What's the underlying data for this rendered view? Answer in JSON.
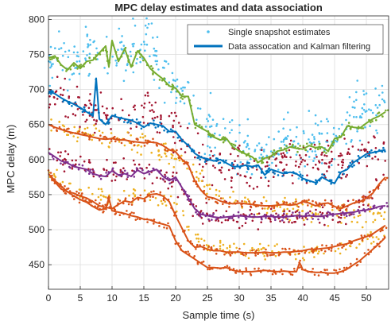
{
  "chart_data": {
    "type": "scatter",
    "title": "MPC delay estimates and data association",
    "xlabel": "Sample time (s)",
    "ylabel": "MPC delay (m)",
    "xlim": [
      0,
      53.5
    ],
    "ylim": [
      415,
      805
    ],
    "xticks": [
      0,
      5,
      10,
      15,
      20,
      25,
      30,
      35,
      40,
      45,
      50
    ],
    "yticks": [
      450,
      500,
      550,
      600,
      650,
      700,
      750,
      800
    ],
    "grid": true,
    "legend": {
      "placement": "top-right",
      "entries": [
        {
          "label": "Single snapshot estimates",
          "marker": "dot",
          "color": "#4dbeee"
        },
        {
          "label": "Data assocation and Kalman filtering",
          "marker": "line",
          "color": "#0072bd"
        }
      ]
    },
    "colors": {
      "snapshot_cyan": "#4dbeee",
      "snapshot_red": "#a2142f",
      "snapshot_yellow": "#edb120",
      "snapshot_orange": "#d95319",
      "snapshot_purple": "#7e2f8e",
      "track_blue": "#0072bd",
      "track_green": "#77ac30",
      "track_orange": "#d95319",
      "track_purple": "#7e2f8e"
    },
    "scatter_series": [
      {
        "color": "#4dbeee",
        "x": [
          0,
          2,
          4,
          6,
          8,
          10,
          12,
          14,
          16,
          18,
          20,
          22,
          24,
          26,
          28,
          30,
          32,
          34,
          36,
          38,
          40,
          42,
          44,
          46,
          48,
          50,
          52,
          53
        ],
        "y": [
          748,
          752,
          738,
          760,
          745,
          740,
          765,
          750,
          770,
          720,
          715,
          680,
          650,
          640,
          630,
          620,
          615,
          605,
          612,
          625,
          620,
          630,
          625,
          640,
          660,
          670,
          665,
          670
        ],
        "spread": 55,
        "density": 14
      },
      {
        "color": "#a2142f",
        "x": [
          0,
          3,
          6,
          9,
          12,
          15,
          18,
          20,
          22,
          25,
          28,
          31,
          34,
          37,
          40,
          43,
          46,
          49,
          52,
          53
        ],
        "y": [
          690,
          685,
          670,
          665,
          660,
          665,
          660,
          640,
          620,
          595,
          590,
          588,
          592,
          595,
          600,
          595,
          600,
          610,
          615,
          620
        ],
        "spread": 38,
        "density": 12
      },
      {
        "color": "#edb120",
        "x": [
          0,
          4,
          8,
          12,
          16,
          20,
          22,
          25,
          30,
          35,
          40,
          45,
          50,
          53
        ],
        "y": [
          650,
          640,
          628,
          625,
          620,
          605,
          585,
          560,
          540,
          530,
          525,
          520,
          520,
          525
        ],
        "spread": 20,
        "density": 8
      },
      {
        "color": "#edb120",
        "x": [
          0,
          5,
          10,
          15,
          20,
          22,
          25,
          30,
          35,
          40,
          45,
          50,
          53
        ],
        "y": [
          582,
          555,
          545,
          548,
          540,
          500,
          480,
          470,
          468,
          468,
          472,
          485,
          495
        ],
        "spread": 14,
        "density": 6
      },
      {
        "color": "#a2142f",
        "x": [
          0,
          5,
          10,
          15,
          20,
          23,
          25,
          30,
          35,
          40,
          43,
          46,
          50,
          53
        ],
        "y": [
          610,
          590,
          580,
          585,
          570,
          530,
          520,
          520,
          520,
          520,
          525,
          520,
          545,
          570
        ],
        "spread": 22,
        "density": 8
      }
    ],
    "tracks": [
      {
        "color": "#77ac30",
        "x": [
          0,
          1,
          2,
          3,
          4,
          5,
          6,
          7,
          8,
          9,
          9.5,
          10,
          11,
          12,
          13,
          14,
          15,
          16,
          17,
          18,
          19,
          20,
          21,
          22,
          23,
          24,
          25,
          26,
          27,
          28,
          29,
          30,
          31,
          32,
          33,
          34,
          35,
          36,
          37,
          38,
          39,
          40,
          41,
          42,
          43,
          44,
          45,
          46,
          47,
          48,
          49,
          50,
          51,
          52,
          53
        ],
        "y": [
          745,
          748,
          735,
          728,
          738,
          730,
          740,
          742,
          752,
          762,
          732,
          770,
          740,
          758,
          732,
          755,
          745,
          730,
          722,
          715,
          705,
          702,
          690,
          690,
          650,
          645,
          640,
          632,
          628,
          630,
          618,
          612,
          608,
          604,
          596,
          602,
          605,
          612,
          614,
          618,
          616,
          615,
          620,
          617,
          618,
          612,
          630,
          632,
          648,
          646,
          645,
          652,
          658,
          662,
          668
        ]
      },
      {
        "color": "#0072bd",
        "x": [
          0,
          1,
          2,
          3,
          4,
          5,
          6,
          7,
          7.5,
          8,
          9,
          10,
          11,
          12,
          13,
          14,
          15,
          16,
          17,
          18,
          19,
          20,
          21,
          22,
          23,
          24,
          25,
          26,
          27,
          28,
          29,
          30,
          31,
          32,
          33,
          34,
          35,
          36,
          37,
          38,
          39,
          40,
          41,
          42,
          43,
          44,
          45,
          46,
          47,
          48,
          49,
          50,
          51,
          52,
          53
        ],
        "y": [
          698,
          694,
          688,
          683,
          679,
          674,
          668,
          662,
          716,
          658,
          650,
          663,
          660,
          658,
          656,
          652,
          646,
          652,
          650,
          648,
          640,
          640,
          628,
          620,
          609,
          603,
          601,
          598,
          600,
          595,
          590,
          590,
          592,
          590,
          592,
          578,
          586,
          583,
          580,
          582,
          580,
          573,
          570,
          567,
          575,
          570,
          566,
          582,
          586,
          596,
          602,
          608,
          610,
          612,
          614
        ]
      },
      {
        "color": "#d95319",
        "x": [
          0,
          1,
          2,
          3,
          4,
          5,
          6,
          7,
          8,
          9,
          10,
          11,
          12,
          13,
          14,
          15,
          16,
          17,
          18,
          19,
          20,
          21,
          22,
          23,
          24,
          25,
          26,
          27,
          28,
          29,
          30,
          31,
          32,
          33,
          34,
          35,
          36,
          37,
          38,
          39,
          40,
          41,
          42,
          43,
          44,
          45,
          46,
          47,
          48,
          49,
          50,
          51,
          52,
          53
        ],
        "y": [
          650,
          646,
          643,
          640,
          638,
          636,
          634,
          632,
          630,
          629,
          630,
          628,
          628,
          626,
          625,
          624,
          625,
          624,
          620,
          614,
          611,
          600,
          592,
          570,
          556,
          547,
          545,
          541,
          538,
          537,
          538,
          537,
          536,
          535,
          534,
          534,
          535,
          536,
          535,
          536,
          540,
          538,
          534,
          537,
          538,
          533,
          530,
          534,
          538,
          540,
          545,
          552,
          565,
          575
        ]
      },
      {
        "color": "#7e2f8e",
        "x": [
          0,
          1,
          2,
          3,
          4,
          5,
          6,
          7,
          8,
          9,
          10,
          11,
          12,
          13,
          14,
          15,
          16,
          17,
          18,
          19,
          20,
          21,
          22,
          23,
          24,
          25,
          26,
          27,
          28,
          29,
          30,
          31,
          32,
          33,
          34,
          35,
          36,
          37,
          38,
          39,
          40,
          41,
          42,
          43,
          44,
          45,
          46,
          47,
          48,
          49,
          50,
          51,
          52,
          53
        ],
        "y": [
          610,
          604,
          598,
          595,
          590,
          588,
          586,
          580,
          577,
          576,
          584,
          578,
          580,
          576,
          585,
          580,
          583,
          586,
          576,
          570,
          575,
          560,
          545,
          530,
          522,
          520,
          518,
          517,
          518,
          519,
          520,
          519,
          518,
          518,
          519,
          519,
          518,
          518,
          519,
          520,
          519,
          520,
          519,
          519,
          521,
          522,
          523,
          524,
          525,
          527,
          528,
          530,
          533,
          534
        ]
      },
      {
        "color": "#d95319",
        "x": [
          0,
          1,
          2,
          3,
          4,
          5,
          6,
          7,
          8,
          9,
          10,
          11,
          12,
          13,
          14,
          15,
          16,
          17,
          18,
          19,
          20,
          21,
          22,
          23,
          24,
          25,
          26,
          27,
          28,
          29,
          30,
          31,
          32,
          33,
          34,
          35,
          36,
          37,
          38,
          39,
          40,
          41,
          42,
          43,
          44,
          45,
          46,
          47,
          48,
          49,
          50,
          51,
          52,
          53
        ],
        "y": [
          580,
          568,
          558,
          554,
          552,
          548,
          545,
          540,
          534,
          532,
          530,
          536,
          541,
          539,
          546,
          544,
          550,
          551,
          548,
          540,
          520,
          502,
          484,
          475,
          476,
          472,
          470,
          470,
          468,
          468,
          468,
          467,
          467,
          467,
          468,
          467,
          467,
          468,
          468,
          469,
          470,
          472,
          472,
          473,
          474,
          476,
          478,
          480,
          484,
          487,
          490,
          494,
          500,
          506
        ]
      },
      {
        "color": "#d95319",
        "x": [
          0,
          1,
          2,
          3,
          4,
          5,
          6,
          7,
          8,
          9,
          9.5,
          10,
          11,
          12,
          13,
          14,
          15,
          16,
          17,
          18,
          19,
          20,
          21,
          22,
          23,
          24,
          25,
          26,
          27,
          28,
          29,
          30,
          31,
          32,
          33,
          34,
          35,
          36,
          37,
          38,
          39,
          39.5,
          40,
          41,
          42,
          43,
          44,
          45,
          46,
          47,
          48,
          49,
          50,
          51,
          52,
          53
        ],
        "y": [
          580,
          570,
          562,
          554,
          548,
          543,
          539,
          533,
          528,
          530,
          545,
          527,
          525,
          523,
          520,
          518,
          515,
          514,
          510,
          508,
          505,
          484,
          470,
          464,
          458,
          452,
          446,
          446,
          445,
          446,
          442,
          440,
          440,
          440,
          441,
          442,
          441,
          440,
          441,
          440,
          440,
          453,
          443,
          440,
          439,
          439,
          438,
          438,
          440,
          444,
          450,
          456,
          464,
          472,
          480,
          489
        ]
      }
    ]
  }
}
